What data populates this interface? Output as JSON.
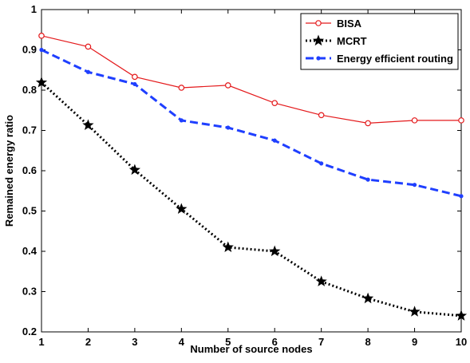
{
  "chart_data": {
    "type": "line",
    "xlabel": "Number of source nodes",
    "ylabel": "Remained energy ratio",
    "xlim": [
      1,
      10
    ],
    "ylim": [
      0.2,
      1
    ],
    "x_ticks": [
      "1",
      "2",
      "3",
      "4",
      "5",
      "6",
      "7",
      "8",
      "9",
      "10"
    ],
    "y_ticks": [
      "0.2",
      "0.3",
      "0.4",
      "0.5",
      "0.6",
      "0.7",
      "0.8",
      "0.9",
      "1"
    ],
    "grid": false,
    "legend_position": "top-right",
    "x": [
      1,
      2,
      3,
      4,
      5,
      6,
      7,
      8,
      9,
      10
    ],
    "series": [
      {
        "name": "BISA",
        "color": "#e41a1c",
        "line_style": "solid",
        "marker": "circle",
        "values": [
          0.935,
          0.908,
          0.833,
          0.806,
          0.812,
          0.768,
          0.738,
          0.718,
          0.725,
          0.725
        ]
      },
      {
        "name": "MCRT",
        "color": "#000000",
        "line_style": "dotted",
        "marker": "star",
        "values": [
          0.819,
          0.713,
          0.602,
          0.505,
          0.41,
          0.4,
          0.325,
          0.283,
          0.25,
          0.24
        ]
      },
      {
        "name": "Energy efficient routing",
        "color": "#1f3fff",
        "line_style": "dashed",
        "marker": "point",
        "values": [
          0.9,
          0.845,
          0.815,
          0.725,
          0.707,
          0.675,
          0.618,
          0.578,
          0.565,
          0.537
        ]
      }
    ]
  }
}
